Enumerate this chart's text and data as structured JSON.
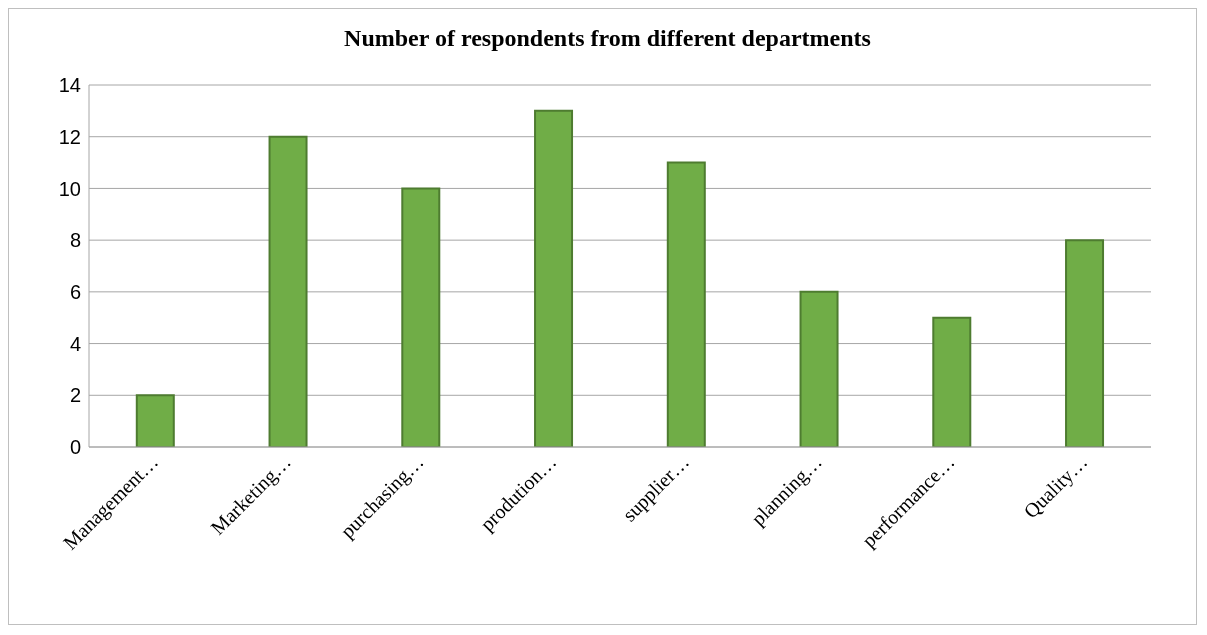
{
  "chart_data": {
    "type": "bar",
    "title": "Number of respondents from different departments",
    "categories": [
      "Management…",
      "Marketing…",
      "purchasing…",
      "prodution…",
      "supplier…",
      "planning…",
      "performance…",
      "Quality…"
    ],
    "values": [
      2,
      12,
      10,
      13,
      11,
      6,
      5,
      8
    ],
    "color": "#70ad47",
    "ylim": [
      0,
      14
    ],
    "yticks": [
      0,
      2,
      4,
      6,
      8,
      10,
      12,
      14
    ],
    "grid": "y"
  }
}
